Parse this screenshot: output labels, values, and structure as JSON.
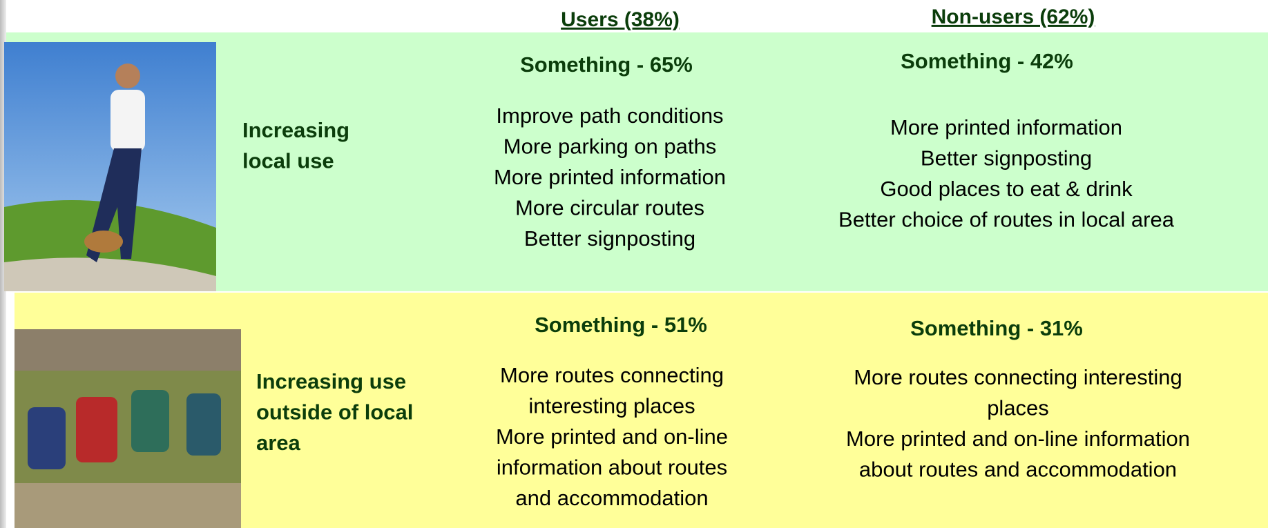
{
  "header": {
    "users": "Users (38%)",
    "non_users": "Non-users (62%)"
  },
  "rows": [
    {
      "label_lines": [
        "Increasing",
        "local use"
      ],
      "users": {
        "heading": "Something - 65%",
        "lines": [
          "Improve path conditions",
          "More parking on paths",
          "More printed information",
          "More circular routes",
          "Better signposting"
        ]
      },
      "non_users": {
        "heading": "Something - 42%",
        "lines": [
          "More printed information",
          "Better signposting",
          "Good places to eat & drink",
          "Better choice of routes in local area"
        ]
      }
    },
    {
      "label_lines": [
        "Increasing use",
        "outside of local",
        "area"
      ],
      "users": {
        "heading": "Something - 51%",
        "lines": [
          "More routes connecting",
          "interesting places",
          "More printed and on-line",
          "information about routes",
          "and accommodation"
        ]
      },
      "non_users": {
        "heading": "Something - 31%",
        "lines": [
          "More routes connecting interesting",
          "places",
          "More printed and on-line information",
          "about routes and accommodation"
        ]
      }
    }
  ]
}
